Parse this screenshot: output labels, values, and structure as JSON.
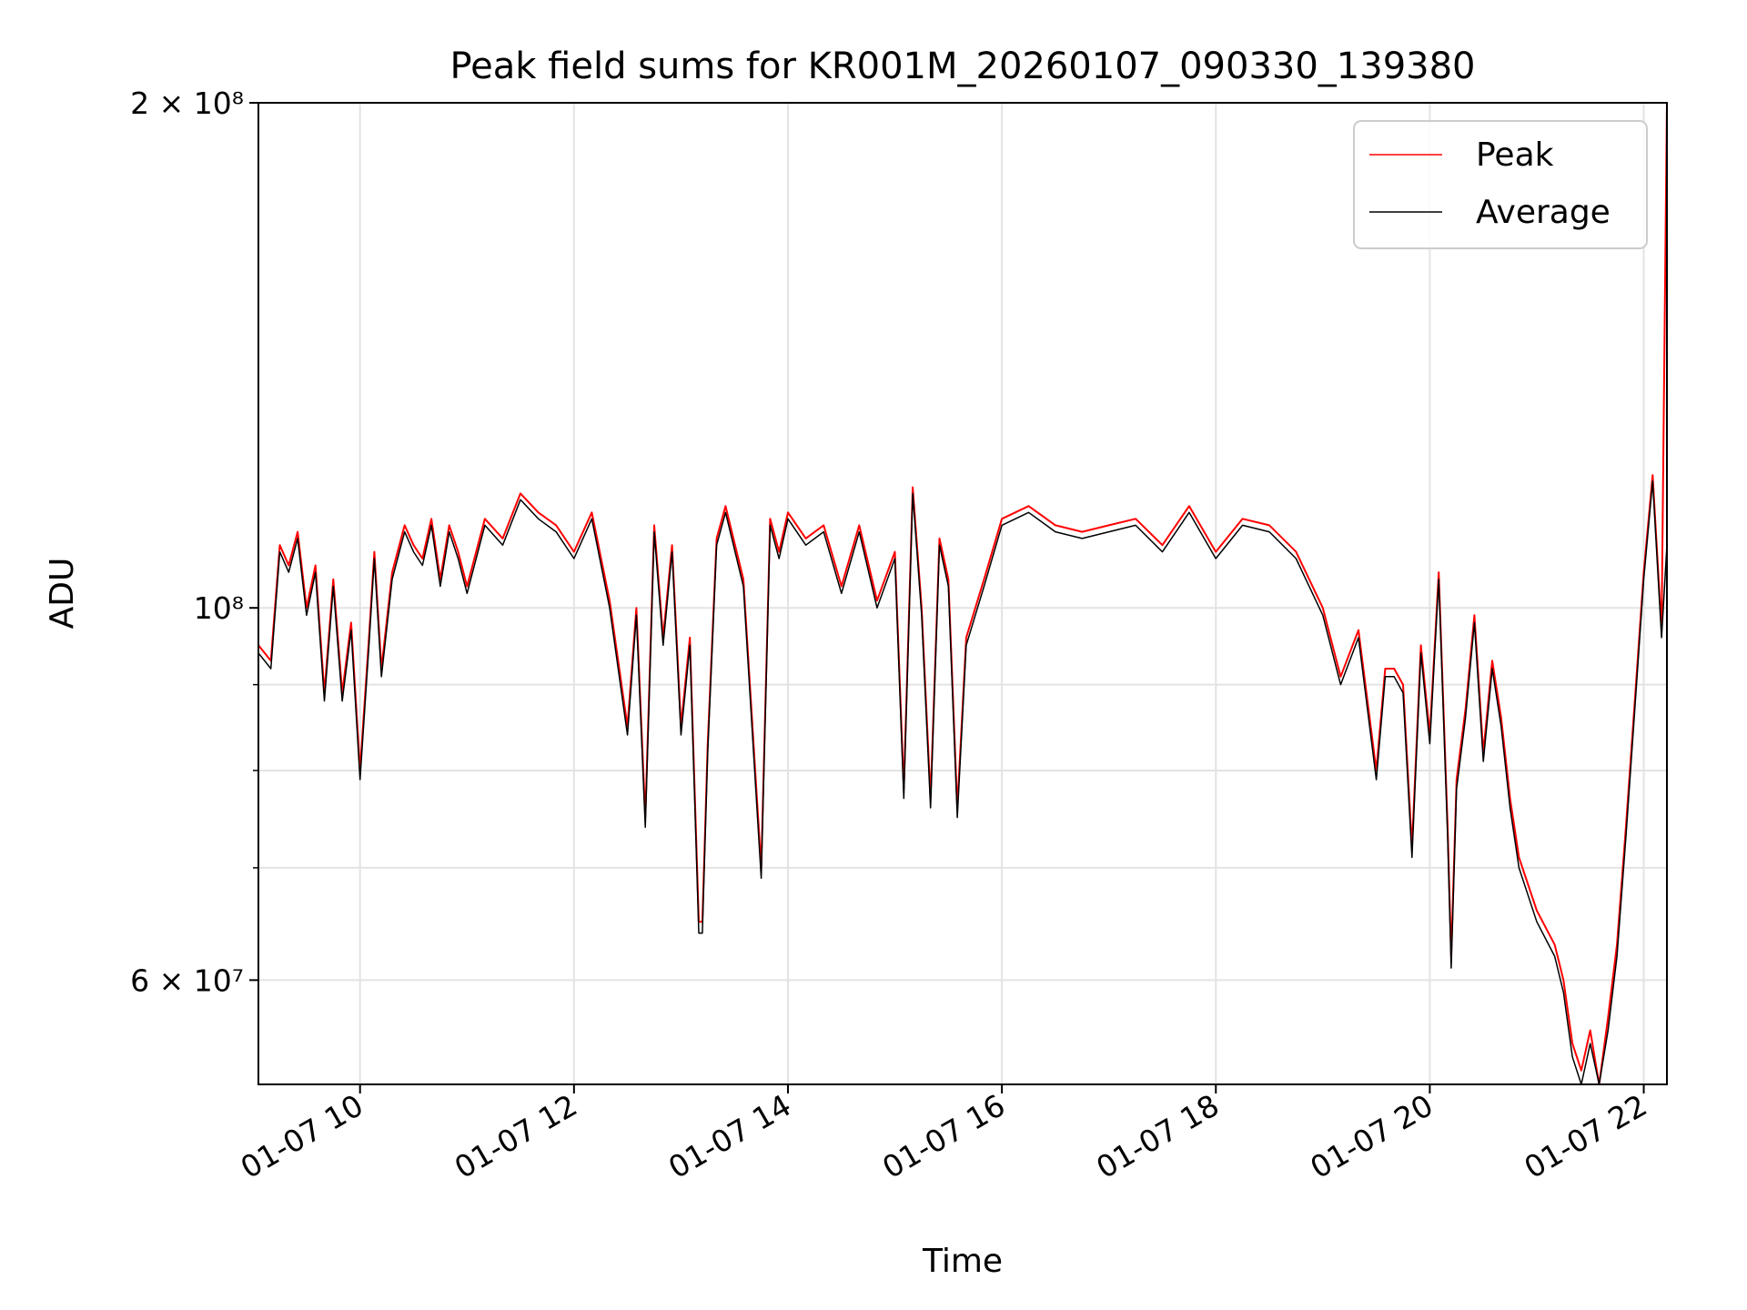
{
  "chart_data": {
    "type": "line",
    "title": "Peak field sums for KR001M_20260107_090330_139380",
    "xlabel": "Time",
    "ylabel": "ADU",
    "y_scale": "log",
    "ylim": [
      52000000,
      200000000
    ],
    "xlim": [
      "2026-01-07 09:03",
      "2026-01-07 22:13"
    ],
    "grid": true,
    "legend_position": "upper right",
    "x_ticks": [
      {
        "t": "2026-01-07 10:00",
        "label": "01-07 10"
      },
      {
        "t": "2026-01-07 12:00",
        "label": "01-07 12"
      },
      {
        "t": "2026-01-07 14:00",
        "label": "01-07 14"
      },
      {
        "t": "2026-01-07 16:00",
        "label": "01-07 16"
      },
      {
        "t": "2026-01-07 18:00",
        "label": "01-07 18"
      },
      {
        "t": "2026-01-07 20:00",
        "label": "01-07 20"
      },
      {
        "t": "2026-01-07 22:00",
        "label": "01-07 22"
      }
    ],
    "y_ticks": [
      {
        "v": 200000000,
        "label": "2 × 10⁸"
      },
      {
        "v": 100000000,
        "label": "10⁸"
      },
      {
        "v": 60000000,
        "label": "6 × 10⁷"
      }
    ],
    "y_minor_ticks": [
      70000000,
      80000000,
      90000000
    ],
    "series": [
      {
        "name": "Peak",
        "color": "#ff0000"
      },
      {
        "name": "Average",
        "color": "#000000"
      }
    ],
    "x": [
      "2026-01-07 09:03",
      "2026-01-07 09:10",
      "2026-01-07 09:15",
      "2026-01-07 09:20",
      "2026-01-07 09:25",
      "2026-01-07 09:30",
      "2026-01-07 09:35",
      "2026-01-07 09:40",
      "2026-01-07 09:45",
      "2026-01-07 09:50",
      "2026-01-07 09:55",
      "2026-01-07 10:00",
      "2026-01-07 10:05",
      "2026-01-07 10:08",
      "2026-01-07 10:12",
      "2026-01-07 10:18",
      "2026-01-07 10:25",
      "2026-01-07 10:30",
      "2026-01-07 10:35",
      "2026-01-07 10:40",
      "2026-01-07 10:45",
      "2026-01-07 10:50",
      "2026-01-07 10:55",
      "2026-01-07 11:00",
      "2026-01-07 11:10",
      "2026-01-07 11:20",
      "2026-01-07 11:30",
      "2026-01-07 11:40",
      "2026-01-07 11:50",
      "2026-01-07 12:00",
      "2026-01-07 12:10",
      "2026-01-07 12:20",
      "2026-01-07 12:30",
      "2026-01-07 12:35",
      "2026-01-07 12:40",
      "2026-01-07 12:45",
      "2026-01-07 12:50",
      "2026-01-07 12:55",
      "2026-01-07 13:00",
      "2026-01-07 13:05",
      "2026-01-07 13:10",
      "2026-01-07 13:12",
      "2026-01-07 13:15",
      "2026-01-07 13:20",
      "2026-01-07 13:25",
      "2026-01-07 13:35",
      "2026-01-07 13:45",
      "2026-01-07 13:50",
      "2026-01-07 13:55",
      "2026-01-07 14:00",
      "2026-01-07 14:10",
      "2026-01-07 14:20",
      "2026-01-07 14:30",
      "2026-01-07 14:40",
      "2026-01-07 14:50",
      "2026-01-07 15:00",
      "2026-01-07 15:05",
      "2026-01-07 15:10",
      "2026-01-07 15:15",
      "2026-01-07 15:20",
      "2026-01-07 15:25",
      "2026-01-07 15:30",
      "2026-01-07 15:35",
      "2026-01-07 15:40",
      "2026-01-07 15:50",
      "2026-01-07 16:00",
      "2026-01-07 16:15",
      "2026-01-07 16:30",
      "2026-01-07 16:45",
      "2026-01-07 17:00",
      "2026-01-07 17:15",
      "2026-01-07 17:30",
      "2026-01-07 17:45",
      "2026-01-07 18:00",
      "2026-01-07 18:15",
      "2026-01-07 18:30",
      "2026-01-07 18:45",
      "2026-01-07 19:00",
      "2026-01-07 19:10",
      "2026-01-07 19:20",
      "2026-01-07 19:30",
      "2026-01-07 19:35",
      "2026-01-07 19:40",
      "2026-01-07 19:45",
      "2026-01-07 19:50",
      "2026-01-07 19:55",
      "2026-01-07 20:00",
      "2026-01-07 20:05",
      "2026-01-07 20:10",
      "2026-01-07 20:12",
      "2026-01-07 20:15",
      "2026-01-07 20:20",
      "2026-01-07 20:25",
      "2026-01-07 20:30",
      "2026-01-07 20:35",
      "2026-01-07 20:40",
      "2026-01-07 20:45",
      "2026-01-07 20:50",
      "2026-01-07 21:00",
      "2026-01-07 21:10",
      "2026-01-07 21:15",
      "2026-01-07 21:20",
      "2026-01-07 21:25",
      "2026-01-07 21:30",
      "2026-01-07 21:35",
      "2026-01-07 21:40",
      "2026-01-07 21:45",
      "2026-01-07 21:50",
      "2026-01-07 21:55",
      "2026-01-07 22:00",
      "2026-01-07 22:05",
      "2026-01-07 22:10",
      "2026-01-07 22:13"
    ],
    "peak": [
      95000000,
      93000000,
      109000000,
      106000000,
      111000000,
      100000000,
      106000000,
      89000000,
      104000000,
      89000000,
      98000000,
      80000000,
      96000000,
      108000000,
      92000000,
      105000000,
      112000000,
      109000000,
      107000000,
      113000000,
      104000000,
      112000000,
      108000000,
      103000000,
      113000000,
      110000000,
      117000000,
      114000000,
      112000000,
      108000000,
      114000000,
      101000000,
      85000000,
      100000000,
      75000000,
      112000000,
      96000000,
      109000000,
      85000000,
      96000000,
      65000000,
      65000000,
      83000000,
      110000000,
      115000000,
      104000000,
      70000000,
      113000000,
      108000000,
      114000000,
      110000000,
      112000000,
      103000000,
      112000000,
      101000000,
      108000000,
      78000000,
      118000000,
      100000000,
      77000000,
      110000000,
      104000000,
      76000000,
      96000000,
      104000000,
      113000000,
      115000000,
      112000000,
      111000000,
      112000000,
      113000000,
      109000000,
      115000000,
      108000000,
      113000000,
      112000000,
      108000000,
      100000000,
      91000000,
      97000000,
      80000000,
      92000000,
      92000000,
      90000000,
      72000000,
      95000000,
      84000000,
      105000000,
      74000000,
      62000000,
      79000000,
      87000000,
      99000000,
      82000000,
      93000000,
      86000000,
      77000000,
      71000000,
      66000000,
      63000000,
      60000000,
      55000000,
      53000000,
      56000000,
      52000000,
      57000000,
      63000000,
      74000000,
      88000000,
      105000000,
      120000000,
      97000000,
      200000000,
      110000000
    ],
    "average": [
      94000000,
      92000000,
      108000000,
      105000000,
      110000000,
      99000000,
      105000000,
      88000000,
      103000000,
      88000000,
      97000000,
      79000000,
      95000000,
      107000000,
      91000000,
      104000000,
      111000000,
      108000000,
      106000000,
      112000000,
      103000000,
      111000000,
      107000000,
      102000000,
      112000000,
      109000000,
      116000000,
      113000000,
      111000000,
      107000000,
      113000000,
      100000000,
      84000000,
      99000000,
      74000000,
      111000000,
      95000000,
      108000000,
      84000000,
      95000000,
      64000000,
      64000000,
      82000000,
      109000000,
      114000000,
      103000000,
      69000000,
      112000000,
      107000000,
      113000000,
      109000000,
      111000000,
      102000000,
      111000000,
      100000000,
      107000000,
      77000000,
      117000000,
      99000000,
      76000000,
      109000000,
      103000000,
      75000000,
      95000000,
      103000000,
      112000000,
      114000000,
      111000000,
      110000000,
      111000000,
      112000000,
      108000000,
      114000000,
      107000000,
      112000000,
      111000000,
      107000000,
      99000000,
      90000000,
      96000000,
      79000000,
      91000000,
      91000000,
      89000000,
      71000000,
      94000000,
      83000000,
      104000000,
      73000000,
      61000000,
      78000000,
      86000000,
      98000000,
      81000000,
      92000000,
      85000000,
      76000000,
      70000000,
      65000000,
      62000000,
      59000000,
      54000000,
      52000000,
      55000000,
      52000000,
      56000000,
      62000000,
      73000000,
      87000000,
      104000000,
      119000000,
      96000000,
      109000000,
      109000000
    ]
  }
}
